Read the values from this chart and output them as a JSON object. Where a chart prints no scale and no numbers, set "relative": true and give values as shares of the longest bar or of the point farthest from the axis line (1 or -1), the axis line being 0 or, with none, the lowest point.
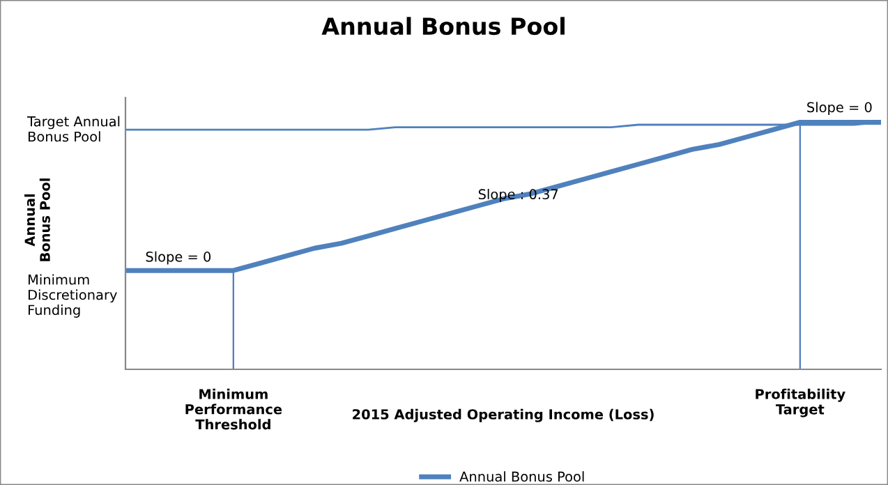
{
  "chart_data": {
    "type": "line",
    "title": "Annual Bonus Pool",
    "xlabel": "2015 Adjusted Operating Income (Loss)",
    "relative": true,
    "categories": [
      null,
      null,
      null,
      null,
      "Minimum\nPerformance\nThreshold",
      null,
      null,
      null,
      null,
      null,
      null,
      null,
      null,
      null,
      null,
      null,
      null,
      null,
      null,
      null,
      null,
      null,
      null,
      null,
      null,
      "Profitability\nTarget",
      null,
      null,
      null
    ],
    "series": [
      {
        "name": "Annual Bonus Pool",
        "color": "#4f81bd",
        "values": [
          0.4,
          0.4,
          0.4,
          0.4,
          0.4,
          0.43,
          0.46,
          0.49,
          0.51,
          0.54,
          0.57,
          0.6,
          0.63,
          0.66,
          0.69,
          0.71,
          0.74,
          0.77,
          0.8,
          0.83,
          0.86,
          0.89,
          0.91,
          0.94,
          0.97,
          1,
          1,
          1,
          1
        ]
      },
      {
        "color": "#4f81bd",
        "values": [
          0.97,
          0.97,
          0.97,
          0.97,
          0.97,
          0.97,
          0.97,
          0.97,
          0.97,
          0.97,
          0.98,
          0.98,
          0.98,
          0.98,
          0.98,
          0.98,
          0.98,
          0.98,
          0.98,
          0.99,
          0.99,
          0.99,
          0.99,
          0.99,
          0.99,
          0.99,
          0.99,
          0.99,
          1
        ]
      },
      {
        "type": "bar",
        "color": "#4f81bd",
        "values": [
          null,
          null,
          null,
          null,
          0.4,
          null,
          null,
          null,
          null,
          null,
          null,
          null,
          null,
          null,
          null,
          null,
          null,
          null,
          null,
          null,
          null,
          null,
          null,
          null,
          null,
          1,
          null,
          null,
          null
        ]
      }
    ],
    "annotations": [
      "Target Annual\nBonus Pool",
      "Minimum\nDiscretionary\nFunding",
      "Slope = 0",
      "Slope : 0.37",
      "Slope = 0",
      "Annual\nBonus Pool"
    ],
    "legend": "bottom",
    "grid": false
  }
}
